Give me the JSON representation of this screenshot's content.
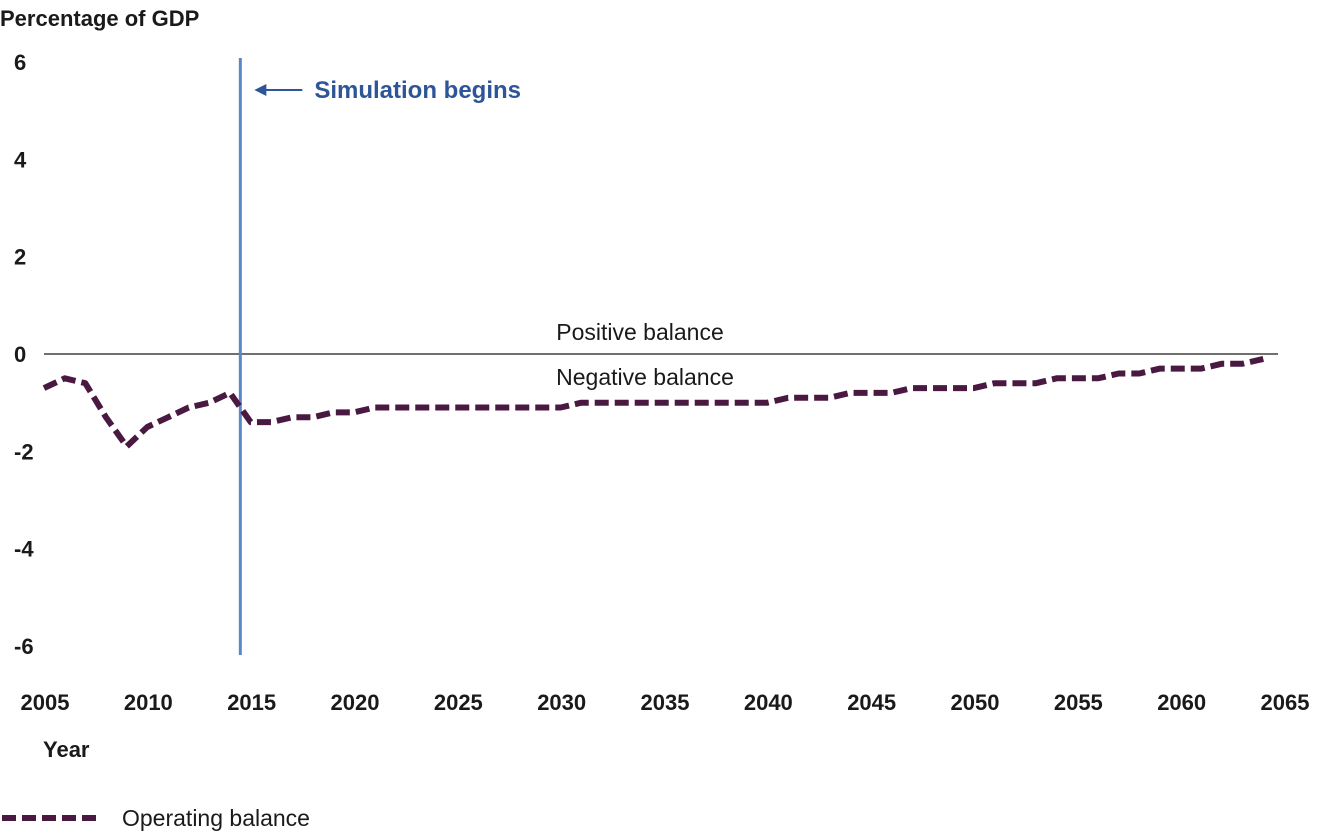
{
  "chart_data": {
    "type": "line",
    "ylabel": "Percentage of GDP",
    "xlabel": "Year",
    "ylim": [
      -6,
      6
    ],
    "xlim": [
      2005,
      2065
    ],
    "yticks": [
      "6",
      "4",
      "2",
      "0",
      "-2",
      "-4",
      "-6"
    ],
    "xticks": [
      "2005",
      "2010",
      "2015",
      "2020",
      "2025",
      "2030",
      "2035",
      "2040",
      "2045",
      "2050",
      "2055",
      "2060",
      "2065"
    ],
    "grid": false,
    "legend_position": "bottom-left",
    "annotations": {
      "simulation": {
        "text": "Simulation begins",
        "x": 2014.5,
        "color": "#5b86c8",
        "text_color": "#2e5597"
      },
      "positive": "Positive balance",
      "negative": "Negative balance"
    },
    "series": [
      {
        "name": "Operating balance",
        "color": "#4a1942",
        "style": "dashed",
        "x": [
          2005,
          2006,
          2007,
          2008,
          2009,
          2010,
          2011,
          2012,
          2013,
          2014,
          2015,
          2016,
          2017,
          2018,
          2019,
          2020,
          2021,
          2022,
          2023,
          2024,
          2025,
          2026,
          2027,
          2028,
          2029,
          2030,
          2031,
          2032,
          2033,
          2034,
          2035,
          2036,
          2037,
          2038,
          2039,
          2040,
          2041,
          2042,
          2043,
          2044,
          2045,
          2046,
          2047,
          2048,
          2049,
          2050,
          2051,
          2052,
          2053,
          2054,
          2055,
          2056,
          2057,
          2058,
          2059,
          2060,
          2061,
          2062,
          2063,
          2064
        ],
        "values": [
          -0.7,
          -0.5,
          -0.6,
          -1.3,
          -1.9,
          -1.5,
          -1.3,
          -1.1,
          -1.0,
          -0.8,
          -1.4,
          -1.4,
          -1.3,
          -1.3,
          -1.2,
          -1.2,
          -1.1,
          -1.1,
          -1.1,
          -1.1,
          -1.1,
          -1.1,
          -1.1,
          -1.1,
          -1.1,
          -1.1,
          -1.0,
          -1.0,
          -1.0,
          -1.0,
          -1.0,
          -1.0,
          -1.0,
          -1.0,
          -1.0,
          -1.0,
          -0.9,
          -0.9,
          -0.9,
          -0.8,
          -0.8,
          -0.8,
          -0.7,
          -0.7,
          -0.7,
          -0.7,
          -0.6,
          -0.6,
          -0.6,
          -0.5,
          -0.5,
          -0.5,
          -0.4,
          -0.4,
          -0.3,
          -0.3,
          -0.3,
          -0.2,
          -0.2,
          -0.1
        ]
      }
    ]
  }
}
